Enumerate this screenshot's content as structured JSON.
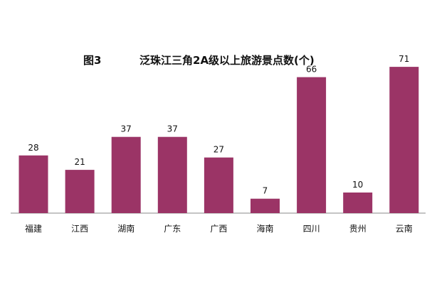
{
  "chart_data": {
    "type": "bar",
    "figure_label": "图3",
    "title": "泛珠江三角2A级以上旅游景点数(个)",
    "categories": [
      "福建",
      "江西",
      "湖南",
      "广东",
      "广西",
      "海南",
      "四川",
      "贵州",
      "云南"
    ],
    "values": [
      28,
      21,
      37,
      37,
      27,
      7,
      66,
      10,
      71
    ],
    "xlabel": "",
    "ylabel": "",
    "ylim": [
      0,
      80
    ],
    "grid": false,
    "legend": "none",
    "bar_color": "#9b3466"
  }
}
